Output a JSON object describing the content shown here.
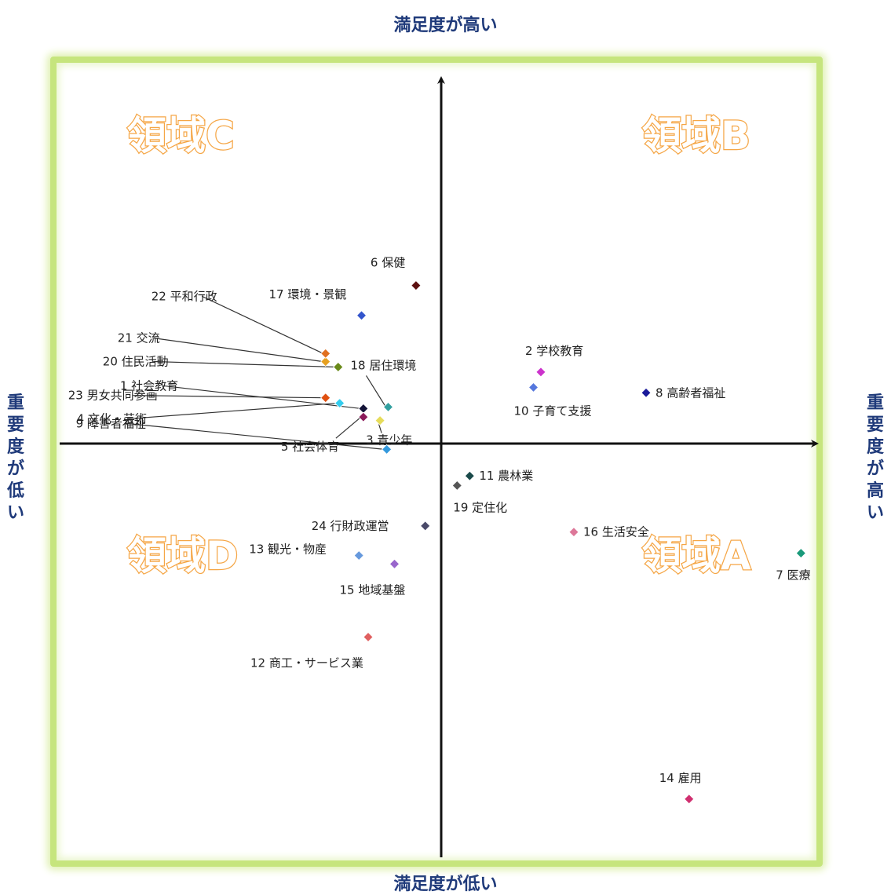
{
  "labels": {
    "top": "満足度が高い",
    "bottom": "満足度が低い",
    "left": "重要度が低い",
    "right": "重要度が高い"
  },
  "regions": {
    "A": "領域A",
    "B": "領域B",
    "C": "領域C",
    "D": "領域D"
  },
  "chart_data": {
    "type": "scatter",
    "title": "",
    "xlabel": "重要度",
    "ylabel": "満足度",
    "xlim": [
      -100,
      100
    ],
    "ylim": [
      -100,
      100
    ],
    "grid": false,
    "legend": "none",
    "points": [
      {
        "label": "1 社会教育",
        "x": -21.0,
        "y": 9.1,
        "color": "#141438"
      },
      {
        "label": "2 学校教育",
        "x": 26.9,
        "y": 18.6,
        "color": "#cc33cc"
      },
      {
        "label": "3 青少年",
        "x": -16.5,
        "y": 6.0,
        "color": "#e6dc5a"
      },
      {
        "label": "4 文化・芸術",
        "x": -27.4,
        "y": 10.5,
        "color": "#33ccee"
      },
      {
        "label": "5 社会体育",
        "x": -21.0,
        "y": 6.9,
        "color": "#8b1a5a"
      },
      {
        "label": "6 保健",
        "x": -6.8,
        "y": 41.1,
        "color": "#5c1010"
      },
      {
        "label": "7 医療",
        "x": 97.1,
        "y": -28.5,
        "color": "#1a9a7a"
      },
      {
        "label": "8 高齢者福祉",
        "x": 55.3,
        "y": 13.2,
        "color": "#1a1a9a"
      },
      {
        "label": "9 障害者福祉",
        "x": -14.7,
        "y": -1.5,
        "color": "#3399dd"
      },
      {
        "label": "10 子育て支援",
        "x": 24.9,
        "y": 14.6,
        "color": "#5577dd"
      },
      {
        "label": "11 農林業",
        "x": 7.7,
        "y": -8.4,
        "color": "#1a4a4a"
      },
      {
        "label": "12 商工・サービス業",
        "x": -19.7,
        "y": -50.3,
        "color": "#e06060"
      },
      {
        "label": "13 観光・物産",
        "x": -22.2,
        "y": -29.1,
        "color": "#6699dd"
      },
      {
        "label": "14 雇用",
        "x": 66.9,
        "y": -92.4,
        "color": "#d03070"
      },
      {
        "label": "15 地域基盤",
        "x": -12.6,
        "y": -31.3,
        "color": "#9966cc"
      },
      {
        "label": "16 生活安全",
        "x": 35.8,
        "y": -23.0,
        "color": "#dd7799"
      },
      {
        "label": "17 環境・景観",
        "x": -21.5,
        "y": 33.3,
        "color": "#3355cc"
      },
      {
        "label": "18 居住環境",
        "x": -14.3,
        "y": 9.5,
        "color": "#33a0a0"
      },
      {
        "label": "19 定住化",
        "x": 4.3,
        "y": -10.9,
        "color": "#555555"
      },
      {
        "label": "20 住民活動",
        "x": -27.8,
        "y": 19.9,
        "color": "#6a8a1a"
      },
      {
        "label": "21 交流",
        "x": -31.2,
        "y": 21.3,
        "color": "#e6a020"
      },
      {
        "label": "22 平和行政",
        "x": -31.2,
        "y": 23.4,
        "color": "#e07020"
      },
      {
        "label": "23 男女共同参画",
        "x": -31.2,
        "y": 11.9,
        "color": "#e05010"
      },
      {
        "label": "24 行財政運営",
        "x": -4.3,
        "y": -21.4,
        "color": "#4a4a6a"
      }
    ]
  }
}
